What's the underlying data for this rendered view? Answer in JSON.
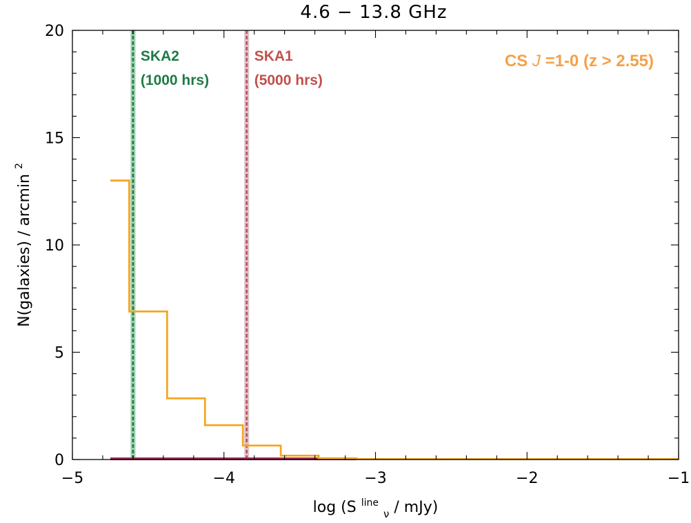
{
  "chart_data": {
    "type": "line",
    "title": "4.6 − 13.8 GHz",
    "xlabel": {
      "prefix": "log (S",
      "sub": "ν",
      "sup": "line",
      "suffix": " / mJy)"
    },
    "ylabel": {
      "base": "N(galaxies) / arcmin",
      "sup": "2"
    },
    "xlim": [
      -5,
      -1
    ],
    "ylim": [
      0,
      20
    ],
    "xticks": [
      -5,
      -4,
      -3,
      -2,
      -1
    ],
    "xtick_labels": [
      "−5",
      "−4",
      "−3",
      "−2",
      "−1"
    ],
    "yticks": [
      0,
      5,
      10,
      15,
      20
    ],
    "ytick_labels": [
      "0",
      "5",
      "10",
      "15",
      "20"
    ],
    "grid": false,
    "series": [
      {
        "name": "CS J=1-0 (z > 2.55)",
        "style": "step",
        "color": "#f5a623",
        "bin_edges": [
          -4.75,
          -4.625,
          -4.375,
          -4.125,
          -3.875,
          -3.625,
          -3.375,
          -3.125,
          -1.0
        ],
        "values": [
          13.0,
          6.9,
          2.85,
          1.6,
          0.65,
          0.18,
          0.06,
          0.02
        ]
      },
      {
        "name": "baseline",
        "style": "flat",
        "color": "#a02a5a",
        "x": [
          -4.75,
          -3.125
        ],
        "values": [
          0,
          0
        ]
      }
    ],
    "annotations": [
      {
        "id": "ska2",
        "x": -4.6,
        "label_line1": "SKA2",
        "label_line2": "(1000 hrs)",
        "color": "#1e7b45",
        "halo": "#9fd0b0"
      },
      {
        "id": "ska1",
        "x": -3.85,
        "label_line1": "SKA1",
        "label_line2": "(5000 hrs)",
        "color": "#c0504d",
        "halo": "#d9c3cc"
      }
    ],
    "legend": {
      "placement": "top-right",
      "text_a": "CS ",
      "text_italic": "J",
      "text_b": "=1-0 (z > 2.55)",
      "color": "#f5a04a"
    }
  }
}
